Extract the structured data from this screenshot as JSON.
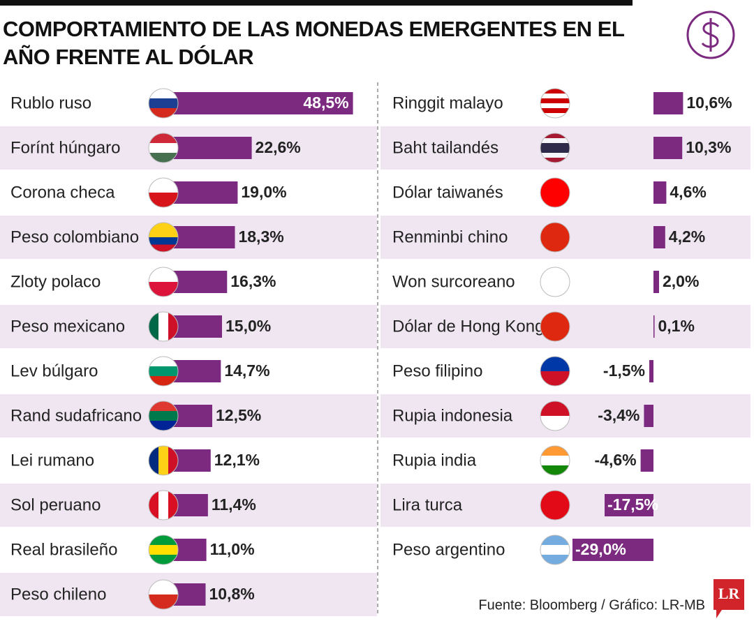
{
  "chart_data": [
    {
      "type": "bar",
      "title": "COMPORTAMIENTO DE LAS MONEDAS EMERGENTES EN EL AÑO FRENTE AL DÓLAR",
      "color": "#7b2a80",
      "categories": [
        "Rublo ruso",
        "Forínt húngaro",
        "Corona checa",
        "Peso colombiano",
        "Zloty polaco",
        "Peso mexicano",
        "Lev búlgaro",
        "Rand sudafricano",
        "Lei rumano",
        "Sol peruano",
        "Real brasileño",
        "Peso chileno"
      ],
      "values": [
        48.5,
        22.6,
        19.0,
        18.3,
        16.3,
        15.0,
        14.7,
        12.5,
        12.1,
        11.4,
        11.0,
        10.8
      ],
      "value_labels": [
        "48,5%",
        "22,6%",
        "19,0%",
        "18,3%",
        "16,3%",
        "15,0%",
        "14,7%",
        "12,5%",
        "12,1%",
        "11,4%",
        "11,0%",
        "10,8%"
      ]
    },
    {
      "type": "bar",
      "color": "#7b2a80",
      "source": "Fuente: Bloomberg / Gráfico: LR-MB",
      "logo": "LR",
      "categories": [
        "Ringgit malayo",
        "Baht tailandés",
        "Dólar taiwanés",
        "Renminbi chino",
        "Won surcoreano",
        "Dólar de Hong Kong",
        "Peso filipino",
        "Rupia indonesia",
        "Rupia india",
        "Lira turca",
        "Peso argentino"
      ],
      "values": [
        10.6,
        10.3,
        4.6,
        4.2,
        2.0,
        0.1,
        -1.5,
        -3.4,
        -4.6,
        -17.5,
        -29.0
      ],
      "value_labels": [
        "10,6%",
        "10,3%",
        "4,6%",
        "4,2%",
        "2,0%",
        "0,1%",
        "-1,5%",
        "-3,4%",
        "-4,6%",
        "-17,5%",
        "-29,0%"
      ]
    }
  ]
}
